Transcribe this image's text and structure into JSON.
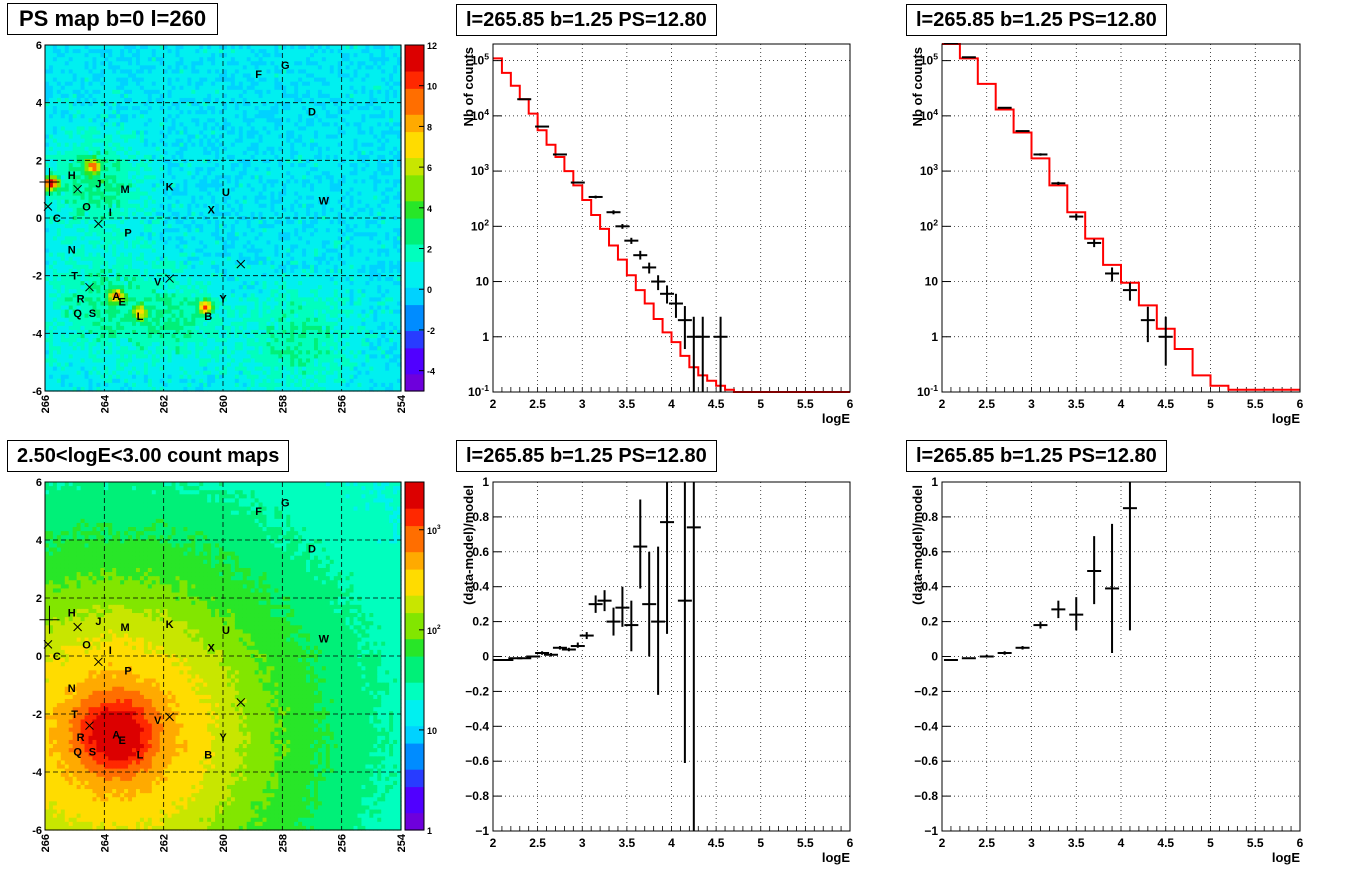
{
  "titles": {
    "map_top": "PS map b=0 l=260",
    "map_bottom": "2.50<logE<3.00 count maps",
    "spec_a": "l=265.85 b=1.25 PS=12.80",
    "spec_b": "l=265.85 b=1.25 PS=12.80",
    "resid_a": "l=265.85 b=1.25 PS=12.80",
    "resid_b": "l=265.85 b=1.25 PS=12.80"
  },
  "chart_data": [
    {
      "type": "heatmap",
      "title": "PS map b=0 l=260",
      "xlim": [
        266,
        254
      ],
      "ylim": [
        -6,
        6
      ],
      "x_ticks": [
        "266",
        "264",
        "262",
        "260",
        "258",
        "256",
        "254"
      ],
      "y_ticks": [
        "-6",
        "-4",
        "-2",
        "0",
        "2",
        "4",
        "6"
      ],
      "colorbar": {
        "range": [
          -5,
          12
        ],
        "ticks": [
          "-4",
          "-2",
          "0",
          "2",
          "4",
          "6",
          "8",
          "10",
          "12"
        ]
      },
      "hotspots": [
        {
          "l": 265.8,
          "b": 1.2,
          "value": 11
        },
        {
          "l": 264.4,
          "b": 1.8,
          "value": 8
        },
        {
          "l": 263.6,
          "b": -2.7,
          "value": 7
        },
        {
          "l": 260.6,
          "b": -3.1,
          "value": 9
        },
        {
          "l": 262.8,
          "b": -3.3,
          "value": 6
        }
      ],
      "sources": [
        {
          "label": "F",
          "l": 258.8,
          "b": 5.0
        },
        {
          "label": "G",
          "l": 257.9,
          "b": 5.3
        },
        {
          "label": "D",
          "l": 257.0,
          "b": 3.7
        },
        {
          "label": "H",
          "l": 265.1,
          "b": 1.5
        },
        {
          "label": "J",
          "l": 264.2,
          "b": 1.2
        },
        {
          "label": "M",
          "l": 263.3,
          "b": 1.0
        },
        {
          "label": "K",
          "l": 261.8,
          "b": 1.1
        },
        {
          "label": "U",
          "l": 259.9,
          "b": 0.9
        },
        {
          "label": "W",
          "l": 256.6,
          "b": 0.6
        },
        {
          "label": "O",
          "l": 264.6,
          "b": 0.4
        },
        {
          "label": "I",
          "l": 263.8,
          "b": 0.2
        },
        {
          "label": "X",
          "l": 260.4,
          "b": 0.3
        },
        {
          "label": "C",
          "l": 265.6,
          "b": 0.0
        },
        {
          "label": "P",
          "l": 263.2,
          "b": -0.5
        },
        {
          "label": "N",
          "l": 265.1,
          "b": -1.1
        },
        {
          "label": "T",
          "l": 265.0,
          "b": -2.0
        },
        {
          "label": "V",
          "l": 262.2,
          "b": -2.2
        },
        {
          "label": "R",
          "l": 264.8,
          "b": -2.8
        },
        {
          "label": "A",
          "l": 263.6,
          "b": -2.7
        },
        {
          "label": "E",
          "l": 263.4,
          "b": -2.9
        },
        {
          "label": "Y",
          "l": 260.0,
          "b": -2.8
        },
        {
          "label": "Q",
          "l": 264.9,
          "b": -3.3
        },
        {
          "label": "S",
          "l": 264.4,
          "b": -3.3
        },
        {
          "label": "L",
          "l": 262.8,
          "b": -3.4
        },
        {
          "label": "B",
          "l": 260.5,
          "b": -3.4
        }
      ],
      "cross_markers": [
        {
          "l": 264.9,
          "b": 1.0
        },
        {
          "l": 264.2,
          "b": -0.2
        },
        {
          "l": 264.5,
          "b": -2.4
        },
        {
          "l": 261.8,
          "b": -2.1
        },
        {
          "l": 259.4,
          "b": -1.6
        },
        {
          "l": 265.9,
          "b": 0.4
        }
      ],
      "crosshair": {
        "l": 265.85,
        "b": 1.25
      },
      "grid": true
    },
    {
      "type": "heatmap",
      "title": "2.50<logE<3.00 count maps",
      "xlim": [
        266,
        254
      ],
      "ylim": [
        -6,
        6
      ],
      "x_ticks": [
        "266",
        "264",
        "262",
        "260",
        "258",
        "256",
        "254"
      ],
      "y_ticks": [
        "-6",
        "-4",
        "-2",
        "0",
        "2",
        "4",
        "6"
      ],
      "colorbar": {
        "log": true,
        "range": [
          1,
          3000
        ],
        "ticks": [
          "1",
          "10",
          "10^2",
          "10^3"
        ]
      },
      "peak": {
        "l": 263.6,
        "b": -2.7,
        "value": 3000
      },
      "sources_same_as_first": true,
      "grid": true
    },
    {
      "type": "line",
      "title": "l=265.85 b=1.25 PS=12.80",
      "xlabel": "logE",
      "ylabel": "Nb of counts",
      "xlim": [
        2,
        6
      ],
      "ylim": [
        0.1,
        200000
      ],
      "ylog": true,
      "x_ticks": [
        "2",
        "2.5",
        "3",
        "3.5",
        "4",
        "4.5",
        "5",
        "5.5",
        "6"
      ],
      "y_ticks": [
        "10^-1",
        "1",
        "10",
        "10^2",
        "10^3",
        "10^4",
        "10^5"
      ],
      "grid": true,
      "series": [
        {
          "kind": "model_histogram",
          "color": "#ff0000",
          "edges": [
            2.0,
            2.1,
            2.2,
            2.3,
            2.4,
            2.5,
            2.6,
            2.7,
            2.8,
            2.9,
            3.0,
            3.1,
            3.2,
            3.3,
            3.4,
            3.5,
            3.6,
            3.7,
            3.8,
            3.9,
            4.0,
            4.1,
            4.2,
            4.3,
            4.4,
            4.5,
            4.6,
            4.7,
            6.0
          ],
          "values": [
            110000,
            60000,
            35000,
            20000,
            11000,
            5500,
            3000,
            1800,
            1000,
            550,
            300,
            160,
            90,
            45,
            25,
            13,
            7,
            4,
            2.1,
            1.2,
            0.8,
            0.45,
            0.28,
            0.2,
            0.16,
            0.13,
            0.11,
            0.1
          ]
        },
        {
          "kind": "data_points",
          "color": "#000000",
          "points": [
            {
              "x": 2.35,
              "y": 20000,
              "lo": 19700,
              "hi": 20300
            },
            {
              "x": 2.55,
              "y": 6400,
              "lo": 6300,
              "hi": 6500
            },
            {
              "x": 2.75,
              "y": 2000,
              "lo": 1950,
              "hi": 2050
            },
            {
              "x": 2.95,
              "y": 620,
              "lo": 600,
              "hi": 645
            },
            {
              "x": 3.15,
              "y": 340,
              "lo": 320,
              "hi": 360
            },
            {
              "x": 3.35,
              "y": 180,
              "lo": 165,
              "hi": 195
            },
            {
              "x": 3.45,
              "y": 100,
              "lo": 90,
              "hi": 110
            },
            {
              "x": 3.55,
              "y": 55,
              "lo": 48,
              "hi": 62
            },
            {
              "x": 3.65,
              "y": 30,
              "lo": 25,
              "hi": 36
            },
            {
              "x": 3.75,
              "y": 18,
              "lo": 14,
              "hi": 22
            },
            {
              "x": 3.85,
              "y": 10,
              "lo": 7,
              "hi": 13
            },
            {
              "x": 3.95,
              "y": 6,
              "lo": 4,
              "hi": 8.5
            },
            {
              "x": 4.05,
              "y": 4,
              "lo": 2.2,
              "hi": 6
            },
            {
              "x": 4.15,
              "y": 2,
              "lo": 0.6,
              "hi": 3.6
            },
            {
              "x": 4.25,
              "y": 1,
              "lo": 0.1,
              "hi": 2.3
            },
            {
              "x": 4.35,
              "y": 1,
              "lo": 0.1,
              "hi": 2.3
            },
            {
              "x": 4.55,
              "y": 1,
              "lo": 0.1,
              "hi": 2.3
            }
          ]
        }
      ]
    },
    {
      "type": "line",
      "title": "l=265.85 b=1.25 PS=12.80",
      "xlabel": "logE",
      "ylabel": "Nb of counts",
      "xlim": [
        2,
        6
      ],
      "ylim": [
        0.1,
        200000
      ],
      "ylog": true,
      "x_ticks": [
        "2",
        "2.5",
        "3",
        "3.5",
        "4",
        "4.5",
        "5",
        "5.5",
        "6"
      ],
      "y_ticks": [
        "10^-1",
        "1",
        "10",
        "10^2",
        "10^3",
        "10^4",
        "10^5"
      ],
      "grid": true,
      "series": [
        {
          "kind": "model_histogram",
          "color": "#ff0000",
          "edges": [
            2.0,
            2.2,
            2.4,
            2.6,
            2.8,
            3.0,
            3.2,
            3.4,
            3.6,
            3.8,
            4.0,
            4.2,
            4.4,
            4.6,
            4.8,
            5.0,
            5.2,
            6.0
          ],
          "values": [
            200000,
            110000,
            38000,
            13000,
            5000,
            1700,
            550,
            180,
            60,
            20,
            9.5,
            3.7,
            1.4,
            0.6,
            0.2,
            0.13,
            0.11
          ]
        },
        {
          "kind": "data_points",
          "color": "#000000",
          "points": [
            {
              "x": 2.1,
              "y": 210000,
              "lo": 209000,
              "hi": 211000
            },
            {
              "x": 2.3,
              "y": 115000,
              "lo": 114000,
              "hi": 116000
            },
            {
              "x": 2.7,
              "y": 14000,
              "lo": 13700,
              "hi": 14300
            },
            {
              "x": 2.9,
              "y": 5300,
              "lo": 5150,
              "hi": 5450
            },
            {
              "x": 3.1,
              "y": 2000,
              "lo": 1900,
              "hi": 2100
            },
            {
              "x": 3.3,
              "y": 600,
              "lo": 560,
              "hi": 640
            },
            {
              "x": 3.5,
              "y": 150,
              "lo": 130,
              "hi": 170
            },
            {
              "x": 3.7,
              "y": 50,
              "lo": 42,
              "hi": 58
            },
            {
              "x": 3.9,
              "y": 14,
              "lo": 10,
              "hi": 18
            },
            {
              "x": 4.1,
              "y": 7,
              "lo": 4.5,
              "hi": 9.5
            },
            {
              "x": 4.3,
              "y": 2,
              "lo": 0.8,
              "hi": 3.5
            },
            {
              "x": 4.5,
              "y": 1,
              "lo": 0.3,
              "hi": 2.3
            }
          ]
        }
      ]
    },
    {
      "type": "scatter",
      "title": "l=265.85 b=1.25 PS=12.80",
      "xlabel": "logE",
      "ylabel": "(data-model)/model",
      "xlim": [
        2,
        6
      ],
      "ylim": [
        -1,
        1
      ],
      "x_ticks": [
        "2",
        "2.5",
        "3",
        "3.5",
        "4",
        "4.5",
        "5",
        "5.5",
        "6"
      ],
      "y_ticks": [
        "-1",
        "-0.8",
        "-0.6",
        "-0.4",
        "-0.2",
        "0",
        "0.2",
        "0.4",
        "0.6",
        "0.8",
        "1"
      ],
      "grid": true,
      "points": [
        {
          "x": 2.05,
          "y": -0.02,
          "lo": -0.02,
          "hi": -0.02
        },
        {
          "x": 2.15,
          "y": -0.02,
          "lo": -0.02,
          "hi": -0.02
        },
        {
          "x": 2.25,
          "y": -0.01,
          "lo": -0.01,
          "hi": -0.01
        },
        {
          "x": 2.35,
          "y": -0.01,
          "lo": -0.01,
          "hi": -0.01
        },
        {
          "x": 2.45,
          "y": 0.0,
          "lo": 0.0,
          "hi": 0.0
        },
        {
          "x": 2.55,
          "y": 0.02,
          "lo": 0.01,
          "hi": 0.03
        },
        {
          "x": 2.65,
          "y": 0.01,
          "lo": 0.0,
          "hi": 0.02
        },
        {
          "x": 2.75,
          "y": 0.05,
          "lo": 0.04,
          "hi": 0.06
        },
        {
          "x": 2.85,
          "y": 0.04,
          "lo": 0.03,
          "hi": 0.05
        },
        {
          "x": 2.95,
          "y": 0.06,
          "lo": 0.05,
          "hi": 0.08
        },
        {
          "x": 3.05,
          "y": 0.12,
          "lo": 0.1,
          "hi": 0.14
        },
        {
          "x": 3.15,
          "y": 0.3,
          "lo": 0.25,
          "hi": 0.35
        },
        {
          "x": 3.25,
          "y": 0.32,
          "lo": 0.26,
          "hi": 0.38
        },
        {
          "x": 3.35,
          "y": 0.2,
          "lo": 0.12,
          "hi": 0.28
        },
        {
          "x": 3.45,
          "y": 0.28,
          "lo": 0.17,
          "hi": 0.4
        },
        {
          "x": 3.55,
          "y": 0.18,
          "lo": 0.03,
          "hi": 0.32
        },
        {
          "x": 3.65,
          "y": 0.63,
          "lo": 0.39,
          "hi": 0.9
        },
        {
          "x": 3.75,
          "y": 0.3,
          "lo": 0.0,
          "hi": 0.6
        },
        {
          "x": 3.85,
          "y": 0.2,
          "lo": -0.22,
          "hi": 0.63
        },
        {
          "x": 3.95,
          "y": 0.77,
          "lo": 0.13,
          "hi": 1.0
        },
        {
          "x": 4.15,
          "y": 0.32,
          "lo": -0.61,
          "hi": 1.0
        },
        {
          "x": 4.25,
          "y": 0.74,
          "lo": -1.0,
          "hi": 1.0
        }
      ]
    },
    {
      "type": "scatter",
      "title": "l=265.85 b=1.25 PS=12.80",
      "xlabel": "logE",
      "ylabel": "(data-model)/model",
      "xlim": [
        2,
        6
      ],
      "ylim": [
        -1,
        1
      ],
      "x_ticks": [
        "2",
        "2.5",
        "3",
        "3.5",
        "4",
        "4.5",
        "5",
        "5.5",
        "6"
      ],
      "y_ticks": [
        "-1",
        "-0.8",
        "-0.6",
        "-0.4",
        "-0.2",
        "0",
        "0.2",
        "0.4",
        "0.6",
        "0.8",
        "1"
      ],
      "grid": true,
      "points": [
        {
          "x": 2.1,
          "y": -0.02,
          "lo": -0.02,
          "hi": -0.02
        },
        {
          "x": 2.3,
          "y": -0.01,
          "lo": -0.01,
          "hi": -0.01
        },
        {
          "x": 2.5,
          "y": 0.0,
          "lo": 0.0,
          "hi": 0.01
        },
        {
          "x": 2.7,
          "y": 0.02,
          "lo": 0.01,
          "hi": 0.03
        },
        {
          "x": 2.9,
          "y": 0.05,
          "lo": 0.04,
          "hi": 0.06
        },
        {
          "x": 3.1,
          "y": 0.18,
          "lo": 0.16,
          "hi": 0.2
        },
        {
          "x": 3.3,
          "y": 0.27,
          "lo": 0.22,
          "hi": 0.32
        },
        {
          "x": 3.5,
          "y": 0.24,
          "lo": 0.15,
          "hi": 0.34
        },
        {
          "x": 3.7,
          "y": 0.49,
          "lo": 0.3,
          "hi": 0.69
        },
        {
          "x": 3.9,
          "y": 0.39,
          "lo": 0.02,
          "hi": 0.76
        },
        {
          "x": 4.1,
          "y": 0.85,
          "lo": 0.15,
          "hi": 1.0
        }
      ]
    }
  ]
}
